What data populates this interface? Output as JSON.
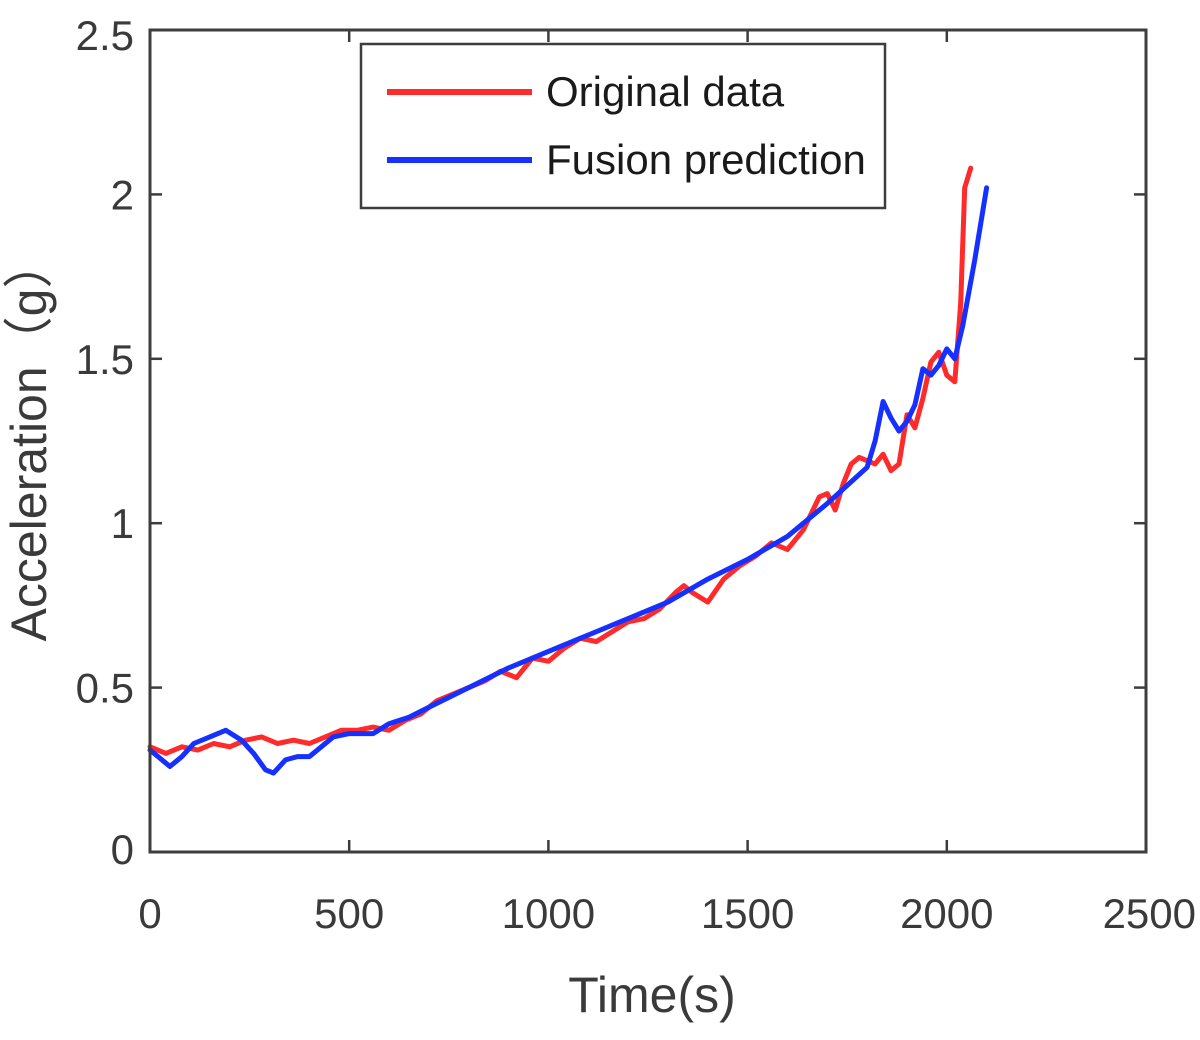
{
  "chart_data": {
    "type": "line",
    "title": "",
    "xlabel": "Time(s)",
    "ylabel": "Acceleration（g）",
    "xlim": [
      0,
      2500
    ],
    "ylim": [
      0,
      2.5
    ],
    "xticks": [
      0,
      500,
      1000,
      1500,
      2000,
      2500
    ],
    "xtick_labels": [
      "0",
      "500",
      "1000",
      "1500",
      "2000",
      "2500"
    ],
    "yticks": [
      0,
      0.5,
      1,
      1.5,
      2,
      2.5
    ],
    "ytick_labels": [
      "0",
      "0.5",
      "1",
      "1.5",
      "2",
      "2.5"
    ],
    "grid": false,
    "legend_position": "top-center",
    "series": [
      {
        "name": "Original data",
        "color": "#ff2a2a",
        "x": [
          0,
          40,
          80,
          120,
          160,
          200,
          240,
          280,
          320,
          360,
          400,
          440,
          480,
          520,
          560,
          600,
          640,
          680,
          720,
          760,
          800,
          840,
          880,
          920,
          960,
          1000,
          1040,
          1080,
          1120,
          1160,
          1200,
          1240,
          1280,
          1320,
          1340,
          1360,
          1400,
          1440,
          1480,
          1520,
          1560,
          1600,
          1640,
          1680,
          1700,
          1720,
          1740,
          1760,
          1780,
          1800,
          1820,
          1840,
          1860,
          1880,
          1900,
          1920,
          1940,
          1960,
          1980,
          2000,
          2020,
          2035,
          2045,
          2060
        ],
        "y": [
          0.32,
          0.3,
          0.32,
          0.31,
          0.33,
          0.32,
          0.34,
          0.35,
          0.33,
          0.34,
          0.33,
          0.35,
          0.37,
          0.37,
          0.38,
          0.37,
          0.4,
          0.42,
          0.46,
          0.48,
          0.5,
          0.52,
          0.55,
          0.53,
          0.59,
          0.58,
          0.62,
          0.65,
          0.64,
          0.67,
          0.7,
          0.71,
          0.74,
          0.79,
          0.81,
          0.79,
          0.76,
          0.83,
          0.87,
          0.9,
          0.94,
          0.92,
          0.98,
          1.08,
          1.09,
          1.04,
          1.12,
          1.18,
          1.2,
          1.19,
          1.18,
          1.21,
          1.16,
          1.18,
          1.33,
          1.29,
          1.38,
          1.49,
          1.52,
          1.45,
          1.43,
          1.67,
          2.02,
          2.08
        ]
      },
      {
        "name": "Fusion prediction",
        "color": "#1630ff",
        "x": [
          0,
          20,
          50,
          80,
          110,
          150,
          190,
          230,
          260,
          290,
          310,
          340,
          370,
          400,
          430,
          460,
          500,
          560,
          600,
          650,
          700,
          800,
          900,
          1000,
          1100,
          1200,
          1300,
          1400,
          1500,
          1600,
          1700,
          1800,
          1820,
          1840,
          1860,
          1880,
          1900,
          1920,
          1940,
          1960,
          1980,
          2000,
          2020,
          2040,
          2070,
          2100
        ],
        "y": [
          0.31,
          0.29,
          0.26,
          0.29,
          0.33,
          0.35,
          0.37,
          0.34,
          0.3,
          0.25,
          0.24,
          0.28,
          0.29,
          0.29,
          0.32,
          0.35,
          0.36,
          0.36,
          0.39,
          0.41,
          0.44,
          0.5,
          0.56,
          0.61,
          0.66,
          0.71,
          0.76,
          0.83,
          0.89,
          0.96,
          1.06,
          1.17,
          1.25,
          1.37,
          1.32,
          1.28,
          1.31,
          1.36,
          1.47,
          1.45,
          1.48,
          1.53,
          1.5,
          1.6,
          1.8,
          2.02
        ]
      }
    ]
  }
}
